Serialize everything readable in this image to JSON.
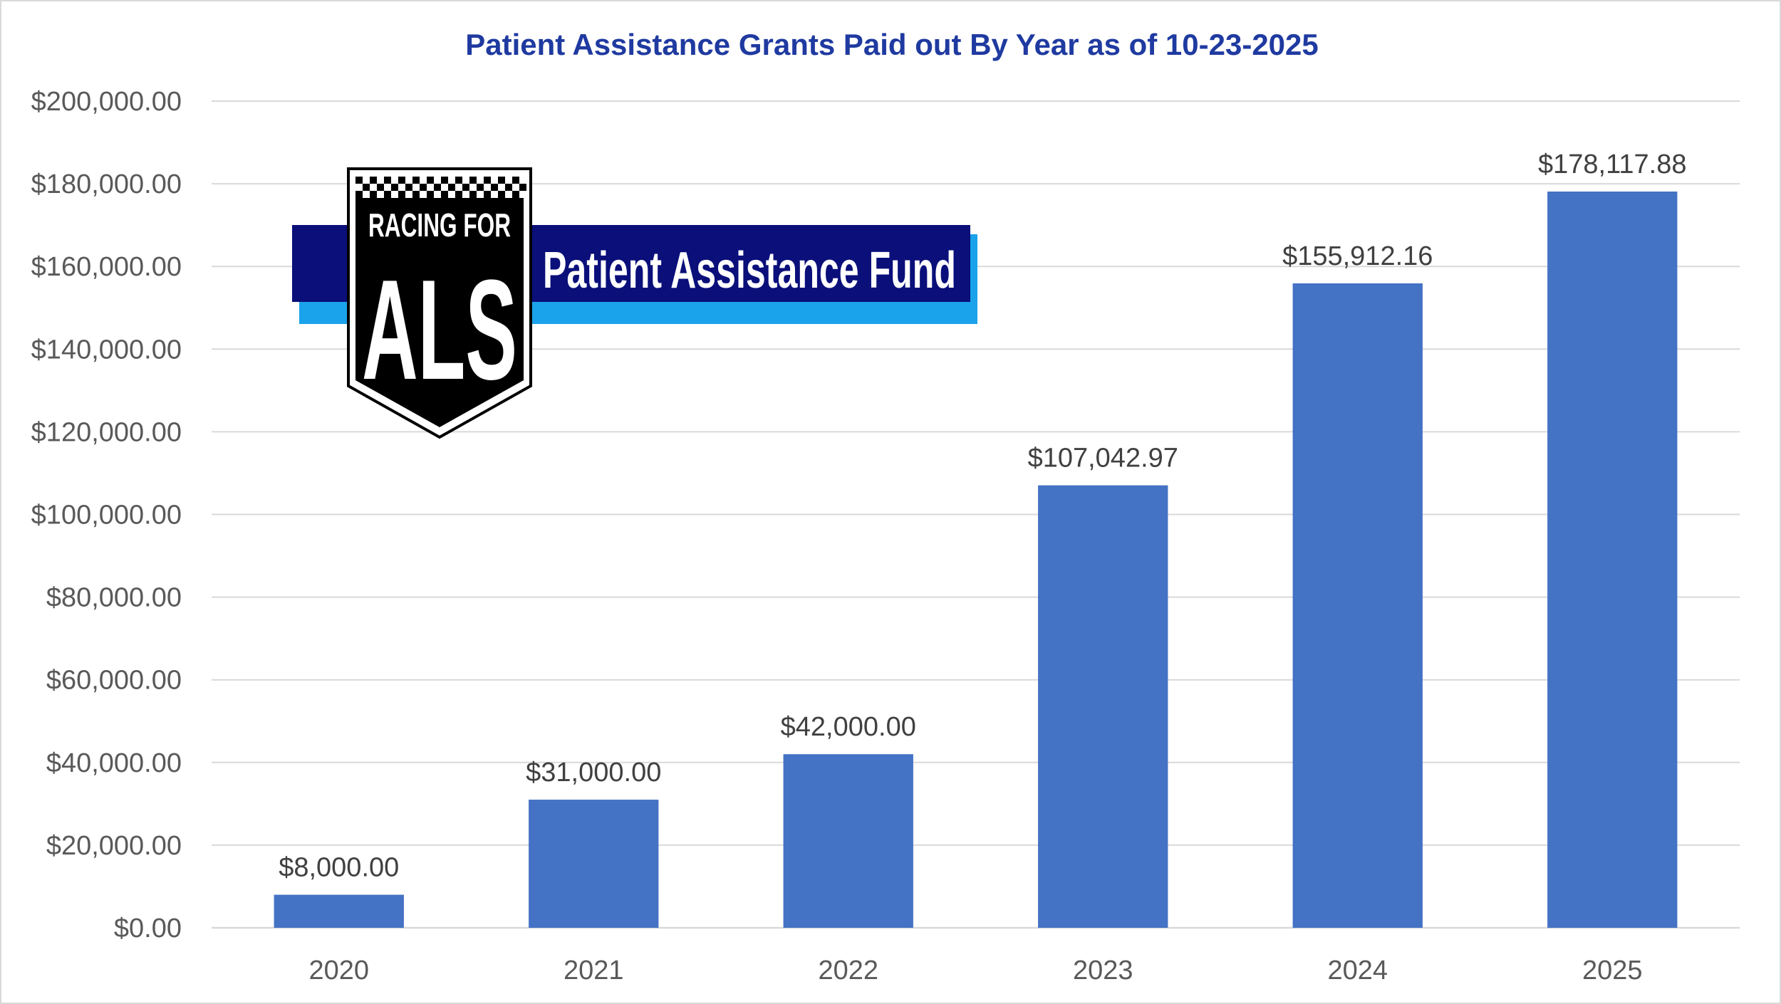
{
  "chart_data": {
    "type": "bar",
    "title": "Patient Assistance Grants Paid out By Year as of 10-23-2025",
    "categories": [
      "2020",
      "2021",
      "2022",
      "2023",
      "2024",
      "2025"
    ],
    "values": [
      8000.0,
      31000.0,
      42000.0,
      107042.97,
      155912.16,
      178117.88
    ],
    "data_labels": [
      "$8,000.00",
      "$31,000.00",
      "$42,000.00",
      "$107,042.97",
      "$155,912.16",
      "$178,117.88"
    ],
    "ylim": [
      0,
      200000
    ],
    "yticks": [
      0,
      20000,
      40000,
      60000,
      80000,
      100000,
      120000,
      140000,
      160000,
      180000,
      200000
    ],
    "ytick_labels": [
      "$0.00",
      "$20,000.00",
      "$40,000.00",
      "$60,000.00",
      "$80,000.00",
      "$100,000.00",
      "$120,000.00",
      "$140,000.00",
      "$160,000.00",
      "$180,000.00",
      "$200,000.00"
    ],
    "grid": true,
    "bar_color": "#4472c4",
    "title_color": "#1f3aa0"
  },
  "logo": {
    "line1": "RACING FOR",
    "line2": "ALS",
    "banner": "Patient Assistance Fund",
    "colors": {
      "navy": "#0a0f7a",
      "sky": "#1aa3ea",
      "black": "#000000"
    }
  }
}
